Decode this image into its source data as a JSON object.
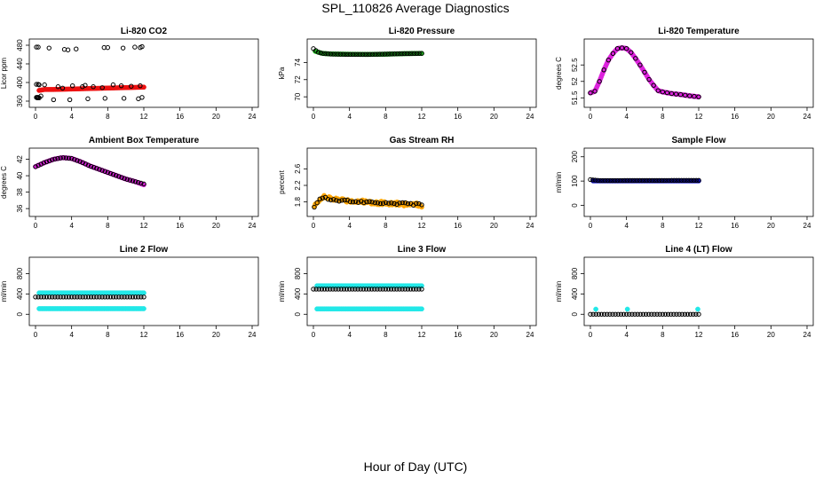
{
  "title": "SPL_110826  Average Diagnostics",
  "xlabel": "Hour of Day (UTC)",
  "colors": {
    "black": "#000000",
    "red": "#ee1111",
    "green": "#22bb22",
    "magenta": "#dd22dd",
    "orange": "#ffa500",
    "blue": "#1111cc",
    "cyan": "#22e8e8"
  },
  "chart_data": [
    {
      "type": "scatter",
      "title": "Li-820 CO2",
      "ylabel": "Licor ppm",
      "xlim": [
        0,
        24
      ],
      "ylim": [
        360,
        480
      ],
      "xticks": [
        0,
        4,
        8,
        12,
        16,
        20,
        24
      ],
      "yticks": [
        360,
        400,
        440,
        480
      ],
      "series": [
        {
          "color": "red",
          "marker": "filled",
          "generator": "curve",
          "x": [
            0.4,
            1,
            2,
            4,
            6,
            8,
            10,
            12
          ],
          "y": [
            383,
            385,
            385,
            386,
            387,
            388,
            389,
            390
          ],
          "n": 60
        },
        {
          "color": "black",
          "marker": "open",
          "x": [
            0.1,
            0.3,
            0.1,
            0.3,
            0.1,
            0.3,
            0.2,
            0.4,
            1.5,
            3.2,
            3.6,
            4.5,
            5.2,
            7.6,
            8.0,
            9.7,
            11.0,
            11.6,
            11.8,
            0.4,
            1.0,
            2.5,
            3.0,
            4.1,
            5.5,
            6.4,
            7.4,
            8.6,
            9.5,
            10.6,
            11.6,
            2.0,
            3.8,
            5.8,
            7.7,
            9.8,
            11.4,
            0.2,
            11.8,
            0.6
          ],
          "y": [
            476,
            476,
            396,
            396,
            368,
            368,
            367,
            367,
            474,
            471,
            470,
            472,
            391,
            475,
            475,
            474,
            476,
            475,
            477,
            395,
            395,
            391,
            388,
            393,
            394,
            391,
            389,
            395,
            393,
            392,
            393,
            363,
            363,
            365,
            366,
            366,
            365,
            368,
            368,
            371
          ]
        }
      ]
    },
    {
      "type": "scatter",
      "title": "Li-820 Pressure",
      "ylabel": "kPa",
      "xlim": [
        0,
        24
      ],
      "ylim": [
        69.5,
        76
      ],
      "xticks": [
        0,
        4,
        8,
        12,
        16,
        20,
        24
      ],
      "yticks": [
        70,
        72,
        74
      ],
      "series": [
        {
          "color": "green",
          "marker": "filled",
          "generator": "curve",
          "x": [
            0.2,
            1,
            2,
            4,
            6,
            8,
            10,
            12
          ],
          "y": [
            75.3,
            75.05,
            74.98,
            74.95,
            74.93,
            74.96,
            75.02,
            75.05
          ],
          "n": 80
        },
        {
          "color": "black",
          "marker": "open",
          "generator": "curve",
          "x": [
            0,
            0.5,
            1,
            2,
            4,
            6,
            8,
            10,
            12
          ],
          "y": [
            75.6,
            75.2,
            75.05,
            74.97,
            74.93,
            74.93,
            74.97,
            75.02,
            75.05
          ],
          "n": 45
        }
      ]
    },
    {
      "type": "scatter",
      "title": "Li-820 Temperature",
      "ylabel": "degrees C",
      "xlim": [
        0,
        24
      ],
      "ylim": [
        51.4,
        53.1
      ],
      "xticks": [
        0,
        4,
        8,
        12,
        16,
        20,
        24
      ],
      "yticks": [
        51.5,
        52,
        52.5
      ],
      "series": [
        {
          "color": "magenta",
          "marker": "filled",
          "generator": "curve",
          "x": [
            0,
            0.5,
            1,
            1.5,
            2,
            2.5,
            3,
            3.5,
            4,
            4.5,
            5,
            5.5,
            6,
            6.5,
            7,
            7.5,
            8,
            9,
            10,
            11,
            12
          ],
          "y": [
            51.65,
            51.7,
            52.0,
            52.35,
            52.65,
            52.85,
            53.0,
            53.02,
            53.0,
            52.88,
            52.7,
            52.5,
            52.28,
            52.06,
            51.88,
            51.72,
            51.68,
            51.63,
            51.6,
            51.56,
            51.53
          ],
          "n": 150
        },
        {
          "color": "black",
          "marker": "open",
          "generator": "curve",
          "x": [
            0,
            0.5,
            1,
            1.5,
            2,
            2.5,
            3,
            3.5,
            4,
            4.5,
            5,
            5.5,
            6,
            6.5,
            7,
            7.5,
            8,
            9,
            10,
            11,
            12
          ],
          "y": [
            51.65,
            51.7,
            52.0,
            52.35,
            52.65,
            52.85,
            53.0,
            53.02,
            53.0,
            52.88,
            52.7,
            52.5,
            52.28,
            52.06,
            51.88,
            51.72,
            51.68,
            51.63,
            51.6,
            51.56,
            51.53
          ],
          "n": 25
        }
      ]
    },
    {
      "type": "scatter",
      "title": "Ambient Box Temperature",
      "ylabel": "degrees C",
      "xlim": [
        0,
        24
      ],
      "ylim": [
        35.8,
        42.6
      ],
      "xticks": [
        0,
        4,
        8,
        12,
        16,
        20,
        24
      ],
      "yticks": [
        36,
        38,
        40,
        42
      ],
      "series": [
        {
          "color": "magenta",
          "marker": "filled",
          "generator": "curve",
          "x": [
            0,
            1,
            2,
            3,
            4,
            5,
            6,
            7,
            8,
            9,
            10,
            11,
            12
          ],
          "y": [
            41.1,
            41.6,
            42.0,
            42.2,
            42.1,
            41.7,
            41.2,
            40.8,
            40.4,
            40.0,
            39.6,
            39.3,
            38.9
          ],
          "n": 90
        },
        {
          "color": "black",
          "marker": "open",
          "generator": "curve",
          "x": [
            0,
            1,
            2,
            3,
            4,
            5,
            6,
            7,
            8,
            9,
            10,
            11,
            12
          ],
          "y": [
            41.1,
            41.6,
            42.0,
            42.2,
            42.1,
            41.7,
            41.2,
            40.8,
            40.4,
            40.0,
            39.6,
            39.3,
            39.0
          ],
          "n": 40
        }
      ]
    },
    {
      "type": "scatter",
      "title": "Gas Stream RH",
      "ylabel": "percent",
      "xlim": [
        0,
        24
      ],
      "ylim": [
        1.6,
        2.95
      ],
      "xticks": [
        0,
        4,
        8,
        12,
        16,
        20,
        24
      ],
      "yticks": [
        1.8,
        2.2,
        2.6
      ],
      "series": [
        {
          "color": "orange",
          "marker": "filled",
          "generator": "curve",
          "x": [
            0.1,
            0.3,
            0.6,
            1,
            1.5,
            2,
            4,
            6,
            8,
            10,
            12
          ],
          "y": [
            1.68,
            1.75,
            1.85,
            1.92,
            1.9,
            1.87,
            1.83,
            1.8,
            1.77,
            1.75,
            1.72
          ],
          "n": 110,
          "jitter": 0.045
        },
        {
          "color": "black",
          "marker": "open",
          "generator": "curve",
          "x": [
            0.1,
            0.3,
            0.6,
            1,
            1.5,
            2,
            4,
            6,
            8,
            10,
            12
          ],
          "y": [
            1.66,
            1.73,
            1.84,
            1.9,
            1.88,
            1.86,
            1.82,
            1.8,
            1.78,
            1.76,
            1.73
          ],
          "n": 40,
          "jitter": 0.025
        }
      ]
    },
    {
      "type": "scatter",
      "title": "Sample Flow",
      "ylabel": "ml/min",
      "xlim": [
        0,
        24
      ],
      "ylim": [
        -20,
        210
      ],
      "xticks": [
        0,
        4,
        8,
        12,
        16,
        20,
        24
      ],
      "yticks": [
        0,
        100,
        200
      ],
      "series": [
        {
          "color": "blue",
          "marker": "filled",
          "generator": "curve",
          "x": [
            0.3,
            12
          ],
          "y": [
            101,
            101
          ],
          "n": 80
        },
        {
          "color": "black",
          "marker": "open",
          "generator": "curve",
          "x": [
            0,
            0.5,
            1,
            12
          ],
          "y": [
            106,
            104,
            102,
            103
          ],
          "n": 45
        }
      ]
    },
    {
      "type": "scatter",
      "title": "Line 2 Flow",
      "ylabel": "ml/min",
      "xlim": [
        0,
        24
      ],
      "ylim": [
        -100,
        1000
      ],
      "xticks": [
        0,
        4,
        8,
        12,
        16,
        20,
        24
      ],
      "yticks": [
        0,
        400,
        800
      ],
      "series": [
        {
          "color": "cyan",
          "marker": "filled",
          "generator": "curve",
          "x": [
            0.4,
            12
          ],
          "y": [
            420,
            420
          ],
          "n": 70
        },
        {
          "color": "cyan",
          "marker": "filled",
          "generator": "curve",
          "x": [
            0.4,
            12
          ],
          "y": [
            110,
            110
          ],
          "n": 70
        },
        {
          "color": "black",
          "marker": "open",
          "generator": "curve",
          "x": [
            0,
            12
          ],
          "y": [
            340,
            340
          ],
          "n": 40
        }
      ]
    },
    {
      "type": "scatter",
      "title": "Line 3 Flow",
      "ylabel": "ml/min",
      "xlim": [
        0,
        24
      ],
      "ylim": [
        -100,
        1000
      ],
      "xticks": [
        0,
        4,
        8,
        12,
        16,
        20,
        24
      ],
      "yticks": [
        0,
        400,
        800
      ],
      "series": [
        {
          "color": "cyan",
          "marker": "filled",
          "generator": "curve",
          "x": [
            0.4,
            12
          ],
          "y": [
            560,
            560
          ],
          "n": 70
        },
        {
          "color": "cyan",
          "marker": "filled",
          "generator": "curve",
          "x": [
            0.4,
            12
          ],
          "y": [
            105,
            105
          ],
          "n": 70
        },
        {
          "color": "black",
          "marker": "open",
          "generator": "curve",
          "x": [
            0,
            12
          ],
          "y": [
            495,
            495
          ],
          "n": 40
        }
      ]
    },
    {
      "type": "scatter",
      "title": "Line 4 (LT) Flow",
      "ylabel": "ml/min",
      "xlim": [
        0,
        24
      ],
      "ylim": [
        -100,
        1000
      ],
      "xticks": [
        0,
        4,
        8,
        12,
        16,
        20,
        24
      ],
      "yticks": [
        0,
        400,
        800
      ],
      "series": [
        {
          "color": "cyan",
          "marker": "filled",
          "x": [
            0.6,
            4.1,
            11.9
          ],
          "y": [
            100,
            100,
            100
          ]
        },
        {
          "color": "black",
          "marker": "open",
          "generator": "curve",
          "x": [
            0,
            12
          ],
          "y": [
            0,
            0
          ],
          "n": 40
        }
      ]
    }
  ]
}
